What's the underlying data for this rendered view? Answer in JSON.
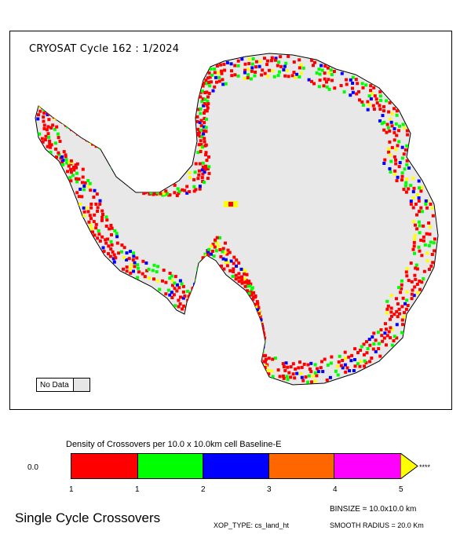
{
  "map": {
    "title": "CRYOSAT Cycle 162 : 1/2024",
    "no_data_label": "No Data",
    "no_data_color": "#e6e6e6",
    "land_color": "#e8e8e8",
    "coast_color": "#000000"
  },
  "legend": {
    "title": "Density of Crossovers per  10.0 x  10.0km cell Baseline-E",
    "zero_label": "0.0",
    "overflow_label": "****",
    "ticks": [
      "1",
      "1",
      "2",
      "3",
      "4",
      "5"
    ],
    "colors": [
      "#ff0000",
      "#00ff00",
      "#0000ff",
      "#ff6600",
      "#ff00ff"
    ],
    "overflow_color": "#ffff00"
  },
  "footer": {
    "title": "Single Cycle Crossovers",
    "binsize": "BINSIZE = 10.0x10.0 km",
    "xop_type": "XOP_TYPE: cs_land_ht",
    "smooth_radius": "SMOOTH RADIUS =   20.0 Km"
  }
}
